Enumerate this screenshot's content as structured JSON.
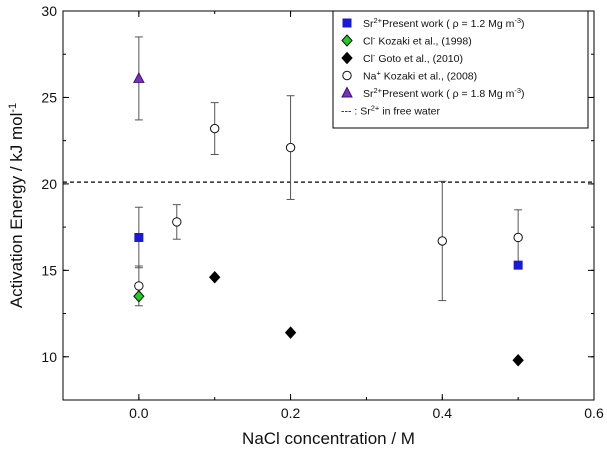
{
  "chart_data": {
    "type": "scatter",
    "xlabel": "NaCl concentration / M",
    "ylabel": "Activation Energy / kJ mol",
    "ylabel_sup": "-1",
    "xlim": [
      -0.1,
      0.6
    ],
    "ylim": [
      7.5,
      30
    ],
    "xticks": [
      0.0,
      0.2,
      0.4,
      0.6
    ],
    "xtick_labels": [
      "0.0",
      "0.2",
      "0.4",
      "0.6"
    ],
    "yticks": [
      10,
      15,
      20,
      25,
      30
    ],
    "ytick_labels": [
      "10",
      "15",
      "20",
      "25",
      "30"
    ],
    "grid": false,
    "legend_position": "top-right",
    "reference_line": {
      "y": 20.1,
      "style": "dashed",
      "color": "#000000"
    },
    "series": [
      {
        "legend": {
          "main": "Sr",
          "sup": "2+",
          "rest": "Present work ( ρ = 1.2 Mg m",
          "rest_sup": "-3",
          "tail": ")"
        },
        "marker": "square",
        "fill": "#1a1ad6",
        "stroke": "#1a1ad6",
        "points": [
          {
            "x": 0.0,
            "y": 16.9,
            "err": 1.75
          },
          {
            "x": 0.5,
            "y": 15.3,
            "err": null
          }
        ]
      },
      {
        "legend": {
          "main": "Cl",
          "sup": "-",
          "rest": " Kozaki et al., (1998)",
          "rest_sup": "",
          "tail": ""
        },
        "marker": "diamond",
        "fill": "#22cc22",
        "stroke": "#111111",
        "points": [
          {
            "x": 0.0,
            "y": 13.5,
            "err": null
          }
        ]
      },
      {
        "legend": {
          "main": "Cl",
          "sup": "-",
          "rest": " Goto et al., (2010)",
          "rest_sup": "",
          "tail": ""
        },
        "marker": "diamond",
        "fill": "#000000",
        "stroke": "#000000",
        "points": [
          {
            "x": 0.1,
            "y": 14.6,
            "err": null
          },
          {
            "x": 0.2,
            "y": 11.4,
            "err": null
          },
          {
            "x": 0.5,
            "y": 9.8,
            "err": null
          }
        ]
      },
      {
        "legend": {
          "main": "Na",
          "sup": "+",
          "rest": " Kozaki et al., (2008)",
          "rest_sup": "",
          "tail": ""
        },
        "marker": "circle",
        "fill": "#ffffff",
        "stroke": "#111111",
        "points": [
          {
            "x": 0.0,
            "y": 14.1,
            "err": 1.15
          },
          {
            "x": 0.05,
            "y": 17.8,
            "err": 1.0
          },
          {
            "x": 0.1,
            "y": 23.2,
            "err": 1.5
          },
          {
            "x": 0.2,
            "y": 22.1,
            "err": 3.0
          },
          {
            "x": 0.4,
            "y": 16.7,
            "err": 3.45
          },
          {
            "x": 0.5,
            "y": 16.9,
            "err": 1.6
          }
        ]
      },
      {
        "legend": {
          "main": "Sr",
          "sup": "2+",
          "rest": "Present work ( ρ = 1.8 Mg m",
          "rest_sup": "-3",
          "tail": ")"
        },
        "marker": "triangle",
        "fill": "#7a2fc4",
        "stroke": "#3a1070",
        "points": [
          {
            "x": 0.0,
            "y": 26.1,
            "err": 2.4
          }
        ]
      }
    ],
    "line_legend": {
      "prefix": "---   : Sr",
      "sup": "2+",
      "rest": " in free water"
    }
  }
}
